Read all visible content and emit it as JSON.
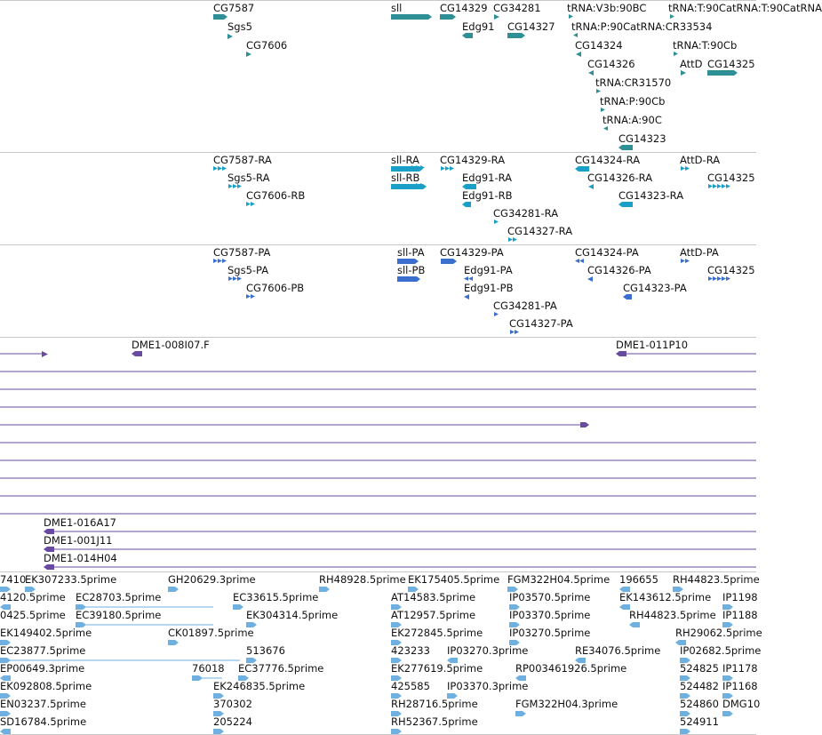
{
  "colors": {
    "gene": "#2f8f96",
    "transcript": "#1aa0c8",
    "protein": "#3a6fd0",
    "bac": "#6a4aa0",
    "est": "#6fb0e0",
    "separator": "#c8c8c8"
  },
  "tracks": {
    "genes": {
      "labels": [
        "CG7587",
        "Sgs5",
        "CG7606",
        "sll",
        "CG14329",
        "CG34281",
        "tRNA:V3b:90BC",
        "tRNA:T:90CatRNA:T:90CatRNA",
        "Edg91",
        "CG14327",
        "tRNA:P:90CatRNA:CR33534",
        "CG14324",
        "tRNA:T:90Cb",
        "CG14326",
        "AttD",
        "CG14325",
        "tRNA:CR31570",
        "tRNA:P:90Cb",
        "tRNA:A:90C",
        "CG14323"
      ]
    },
    "transcripts": {
      "labels": [
        "CG7587-RA",
        "Sgs5-RA",
        "CG7606-RB",
        "sll-RA",
        "sll-RB",
        "CG14329-RA",
        "Edg91-RA",
        "Edg91-RB",
        "CG34281-RA",
        "CG14327-RA",
        "CG14324-RA",
        "CG14326-RA",
        "CG14323-RA",
        "AttD-RA",
        "CG14325"
      ]
    },
    "proteins": {
      "labels": [
        "CG7587-PA",
        "Sgs5-PA",
        "CG7606-PB",
        "sll-PA",
        "sll-PB",
        "CG14329-PA",
        "Edg91-PA",
        "Edg91-PB",
        "CG34281-PA",
        "CG14327-PA",
        "CG14324-PA",
        "CG14326-PA",
        "CG14323-PA",
        "AttD-PA",
        "CG14325"
      ]
    },
    "bacs": {
      "labels": [
        "DME1-008I07.F",
        "DME1-011P10",
        "DME1-016A17",
        "DME1-001J11",
        "DME1-014H04"
      ]
    },
    "ests": {
      "labels": [
        "7410",
        "EK307233.5prime",
        "GH20629.3prime",
        "RH48928.5prime",
        "EK175405.5prime",
        "FGM322H04.5prime",
        "196655",
        "RH44823.5prime",
        "IP1198",
        "0425.5prime",
        "EC28703.5prime",
        "EC33615.5prime",
        "AT14583.5prime",
        "IP03570.5prime",
        "EK143612.5prime",
        "IP1188",
        "EC39180.5prime",
        "EK304314.5prime",
        "AT12957.5prime",
        "IP03370.5prime",
        "RH44823.5prime",
        "4120.5prime",
        "EK149402.5prime",
        "CK01897.5prime",
        "EK272845.5prime",
        "IP03270.5prime",
        "RH29062.5prime",
        "EC23877.5prime",
        "513676",
        "423233",
        "IP03270.3prime",
        "RE34076.5prime",
        "IP02682.5prime",
        "EP00649.3prime",
        "76018",
        "EC37776.5prime",
        "EK277619.5prime",
        "RP003461926.5prime",
        "524825",
        "IP1178",
        "EK092808.5prime",
        "EK246835.5prime",
        "425585",
        "IP03370.3prime",
        "524482",
        "IP1168",
        "EN03237.5prime",
        "370302",
        "RH28716.5prime",
        "FGM322H04.3prime",
        "524860",
        "DMG10",
        "SD16784.5prime",
        "205224",
        "RH52367.5prime",
        "524911"
      ]
    }
  }
}
